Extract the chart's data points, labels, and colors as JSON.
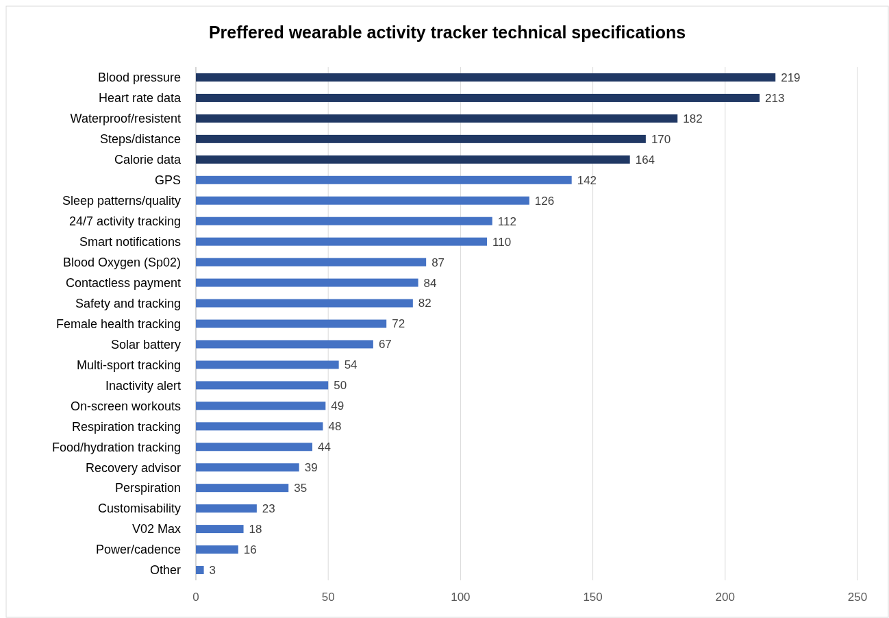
{
  "chart_data": {
    "type": "bar",
    "orientation": "horizontal",
    "title": "Preffered wearable activity tracker technical specifications",
    "categories": [
      "Blood pressure",
      "Heart rate data",
      "Waterproof/resistent",
      "Steps/distance",
      "Calorie data",
      "GPS",
      "Sleep patterns/quality",
      "24/7 activity tracking",
      "Smart notifications",
      "Blood Oxygen (Sp02)",
      "Contactless payment",
      "Safety and tracking",
      "Female health tracking",
      "Solar battery",
      "Multi-sport tracking",
      "Inactivity alert",
      "On-screen workouts",
      "Respiration tracking",
      "Food/hydration tracking",
      "Recovery advisor",
      "Perspiration",
      "Customisability",
      "V02 Max",
      "Power/cadence",
      "Other"
    ],
    "values": [
      219,
      213,
      182,
      170,
      164,
      142,
      126,
      112,
      110,
      87,
      84,
      82,
      72,
      67,
      54,
      50,
      49,
      48,
      44,
      39,
      35,
      23,
      18,
      16,
      3
    ],
    "colors": [
      "#203864",
      "#203864",
      "#203864",
      "#203864",
      "#203864",
      "#4472c4",
      "#4472c4",
      "#4472c4",
      "#4472c4",
      "#4472c4",
      "#4472c4",
      "#4472c4",
      "#4472c4",
      "#4472c4",
      "#4472c4",
      "#4472c4",
      "#4472c4",
      "#4472c4",
      "#4472c4",
      "#4472c4",
      "#4472c4",
      "#4472c4",
      "#4472c4",
      "#4472c4",
      "#4472c4"
    ],
    "xlim": [
      0,
      250
    ],
    "xticks": [
      0,
      50,
      100,
      150,
      200,
      250
    ],
    "grid": "x",
    "data_labels": true
  }
}
